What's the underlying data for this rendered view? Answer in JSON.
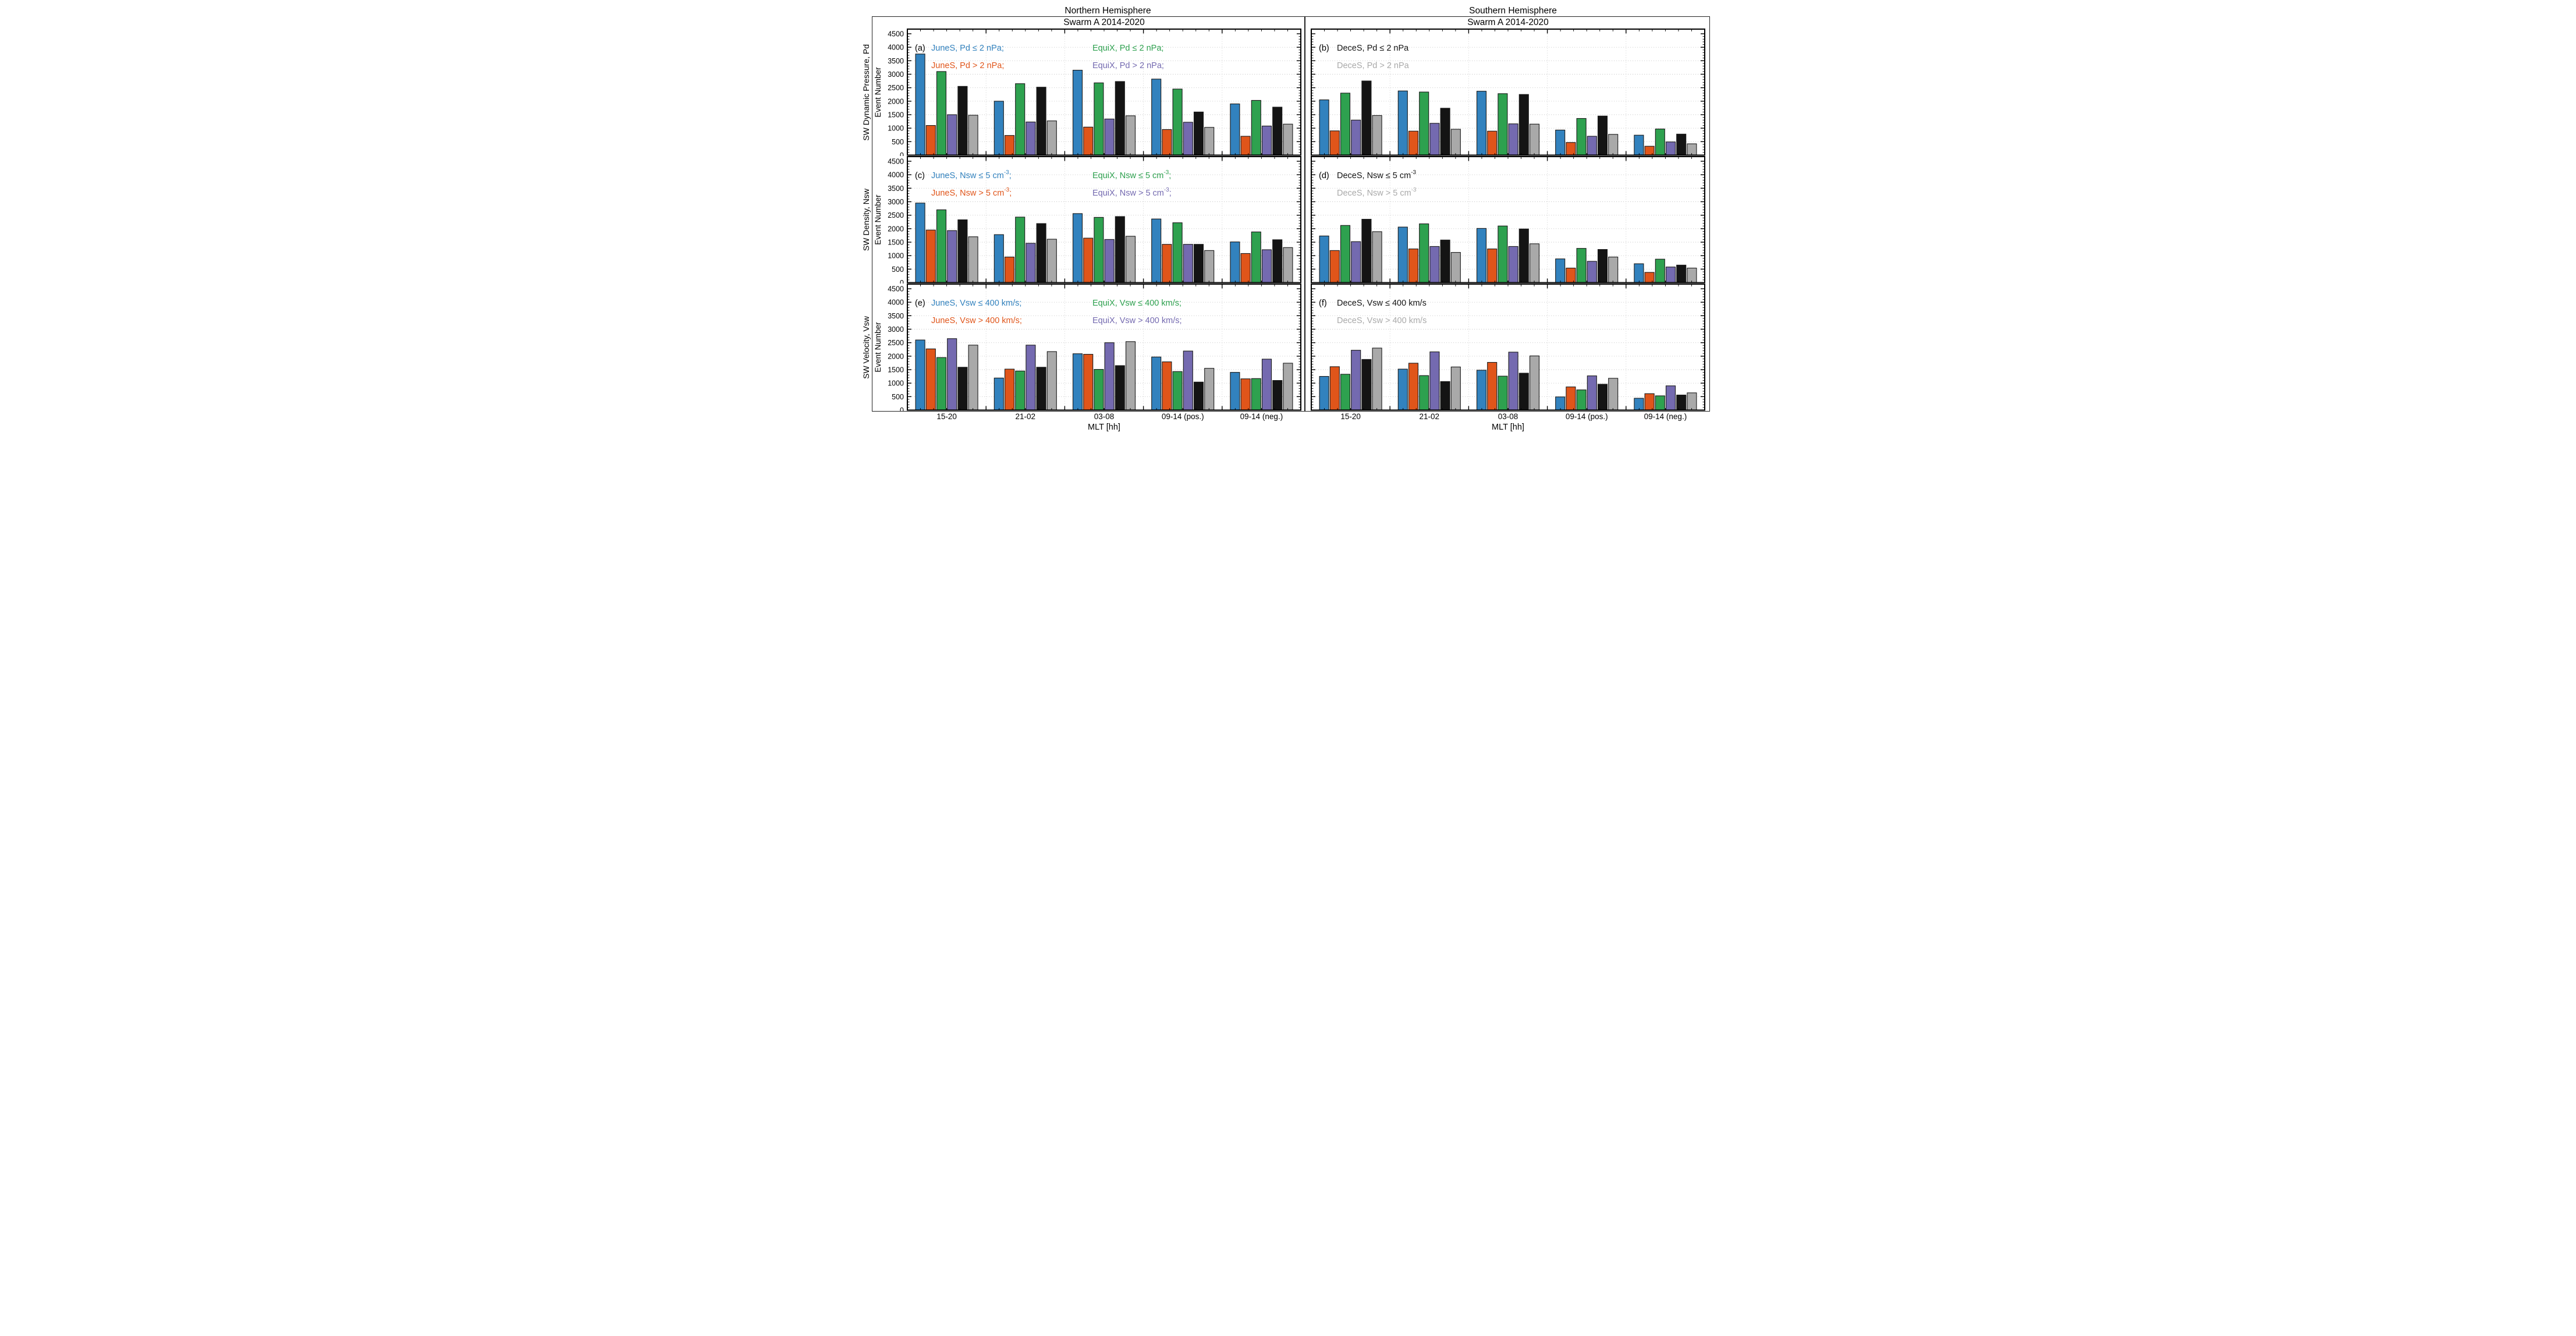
{
  "figure": {
    "columns": [
      {
        "title": "Northern Hemisphere",
        "subtitle": "Swarm A 2014-2020"
      },
      {
        "title": "Southern Hemisphere",
        "subtitle": "Swarm A 2014-2020"
      }
    ],
    "rows": [
      {
        "outer_label": "SW Dynamic Pressure, Pd",
        "inner_label": "Event Number"
      },
      {
        "outer_label": "SW Density, Nsw",
        "inner_label": "Event Number"
      },
      {
        "outer_label": "SW Velocity, Vsw",
        "inner_label": "Event Number"
      }
    ],
    "xlabel": "MLT [hh]"
  },
  "series_colors": {
    "blue": "#3282BE",
    "orange": "#E0551A",
    "green": "#2EA14F",
    "purple": "#746AB0",
    "black": "#141414",
    "gray": "#A9A9A9"
  },
  "chart_data": {
    "type": "bar",
    "categories": [
      "15-20",
      "21-02",
      "03-08",
      "09-14 (pos.)",
      "09-14 (neg.)"
    ],
    "ylim": [
      0,
      4500
    ],
    "ytick_step": 500,
    "yminor_step": 100,
    "ytick_labels": [
      "0",
      "500",
      "1000",
      "1500",
      "2000",
      "2500",
      "3000",
      "3500",
      "4000",
      "4500"
    ],
    "grid": "dotted horizontal every 500; dotted vertical at group boundaries",
    "legend_position": "inside top-left",
    "panels": [
      {
        "key": "a",
        "letter": "(a)",
        "column": 0,
        "row": 0,
        "legend": [
          {
            "pre": "JuneS, Pd ≤ 2 nPa;",
            "sup": "",
            "post": "",
            "color": "blue",
            "col": 0,
            "line": 0
          },
          {
            "pre": "JuneS, Pd > 2 nPa;",
            "sup": "",
            "post": "",
            "color": "orange",
            "col": 0,
            "line": 1
          },
          {
            "pre": "EquiX, Pd ≤ 2 nPa;",
            "sup": "",
            "post": "",
            "color": "green",
            "col": 1,
            "line": 0
          },
          {
            "pre": "EquiX, Pd > 2 nPa;",
            "sup": "",
            "post": "",
            "color": "purple",
            "col": 1,
            "line": 1
          }
        ],
        "series": [
          {
            "name": "JuneS, Pd <= 2 nPa",
            "color": "blue",
            "values": [
              3750,
              2000,
              3150,
              2820,
              1900
            ]
          },
          {
            "name": "JuneS, Pd > 2 nPa",
            "color": "orange",
            "values": [
              1100,
              730,
              1040,
              950,
              700
            ]
          },
          {
            "name": "EquiX, Pd <= 2 nPa",
            "color": "green",
            "values": [
              3100,
              2650,
              2680,
              2450,
              2030
            ]
          },
          {
            "name": "EquiX, Pd > 2 nPa",
            "color": "purple",
            "values": [
              1500,
              1230,
              1340,
              1220,
              1080
            ]
          },
          {
            "name": "DeceS, Pd <= 2 nPa",
            "color": "black",
            "values": [
              2550,
              2520,
              2730,
              1600,
              1780
            ]
          },
          {
            "name": "DeceS, Pd > 2 nPa",
            "color": "gray",
            "values": [
              1480,
              1270,
              1460,
              1030,
              1150
            ]
          }
        ]
      },
      {
        "key": "b",
        "letter": "(b)",
        "column": 1,
        "row": 0,
        "legend": [
          {
            "pre": "DeceS, Pd ≤ 2 nPa",
            "sup": "",
            "post": "",
            "color": "black",
            "col": 0,
            "line": 0
          },
          {
            "pre": "DeceS, Pd > 2 nPa",
            "sup": "",
            "post": "",
            "color": "gray",
            "col": 0,
            "line": 1
          }
        ],
        "series": [
          {
            "name": "JuneS, Pd <= 2 nPa",
            "color": "blue",
            "values": [
              2050,
              2380,
              2370,
              930,
              740
            ]
          },
          {
            "name": "JuneS, Pd > 2 nPa",
            "color": "orange",
            "values": [
              900,
              890,
              890,
              470,
              330
            ]
          },
          {
            "name": "EquiX, Pd <= 2 nPa",
            "color": "green",
            "values": [
              2300,
              2340,
              2280,
              1360,
              970
            ]
          },
          {
            "name": "EquiX, Pd > 2 nPa",
            "color": "purple",
            "values": [
              1300,
              1180,
              1160,
              700,
              490
            ]
          },
          {
            "name": "DeceS, Pd <= 2 nPa",
            "color": "black",
            "values": [
              2750,
              1740,
              2250,
              1450,
              780
            ]
          },
          {
            "name": "DeceS, Pd > 2 nPa",
            "color": "gray",
            "values": [
              1470,
              960,
              1150,
              770,
              420
            ]
          }
        ]
      },
      {
        "key": "c",
        "letter": "(c)",
        "column": 0,
        "row": 1,
        "legend": [
          {
            "pre": "JuneS, Nsw ≤ 5 cm",
            "sup": "-3",
            "post": ";",
            "color": "blue",
            "col": 0,
            "line": 0
          },
          {
            "pre": "JuneS, Nsw > 5 cm",
            "sup": "-3",
            "post": ";",
            "color": "orange",
            "col": 0,
            "line": 1
          },
          {
            "pre": "EquiX, Nsw ≤ 5 cm",
            "sup": "-3",
            "post": ";",
            "color": "green",
            "col": 1,
            "line": 0
          },
          {
            "pre": "EquiX, Nsw > 5 cm",
            "sup": "-3",
            "post": ";",
            "color": "purple",
            "col": 1,
            "line": 1
          }
        ],
        "series": [
          {
            "name": "JuneS, Nsw <= 5 cm-3",
            "color": "blue",
            "values": [
              2950,
              1780,
              2560,
              2360,
              1510
            ]
          },
          {
            "name": "JuneS, Nsw > 5 cm-3",
            "color": "orange",
            "values": [
              1950,
              950,
              1650,
              1420,
              1080
            ]
          },
          {
            "name": "EquiX, Nsw <= 5 cm-3",
            "color": "green",
            "values": [
              2700,
              2430,
              2420,
              2220,
              1880
            ]
          },
          {
            "name": "EquiX, Nsw > 5 cm-3",
            "color": "purple",
            "values": [
              1930,
              1460,
              1600,
              1420,
              1220
            ]
          },
          {
            "name": "DeceS, Nsw <= 5 cm-3",
            "color": "black",
            "values": [
              2330,
              2190,
              2450,
              1420,
              1590
            ]
          },
          {
            "name": "DeceS, Nsw > 5 cm-3",
            "color": "gray",
            "values": [
              1700,
              1610,
              1720,
              1190,
              1300
            ]
          }
        ]
      },
      {
        "key": "d",
        "letter": "(d)",
        "column": 1,
        "row": 1,
        "legend": [
          {
            "pre": "DeceS, Nsw ≤ 5 cm",
            "sup": "-3",
            "post": "",
            "color": "black",
            "col": 0,
            "line": 0
          },
          {
            "pre": "DeceS, Nsw > 5 cm",
            "sup": "-3",
            "post": "",
            "color": "gray",
            "col": 0,
            "line": 1
          }
        ],
        "series": [
          {
            "name": "JuneS, Nsw <= 5 cm-3",
            "color": "blue",
            "values": [
              1730,
              2060,
              2010,
              880,
              700
            ]
          },
          {
            "name": "JuneS, Nsw > 5 cm-3",
            "color": "orange",
            "values": [
              1190,
              1250,
              1250,
              540,
              380
            ]
          },
          {
            "name": "EquiX, Nsw <= 5 cm-3",
            "color": "green",
            "values": [
              2120,
              2180,
              2100,
              1270,
              870
            ]
          },
          {
            "name": "EquiX, Nsw > 5 cm-3",
            "color": "purple",
            "values": [
              1520,
              1340,
              1340,
              790,
              580
            ]
          },
          {
            "name": "DeceS, Nsw <= 5 cm-3",
            "color": "black",
            "values": [
              2350,
              1580,
              1990,
              1230,
              650
            ]
          },
          {
            "name": "DeceS, Nsw > 5 cm-3",
            "color": "gray",
            "values": [
              1890,
              1120,
              1440,
              950,
              540
            ]
          }
        ]
      },
      {
        "key": "e",
        "letter": "(e)",
        "column": 0,
        "row": 2,
        "legend": [
          {
            "pre": "JuneS, Vsw ≤ 400 km/s;",
            "sup": "",
            "post": "",
            "color": "blue",
            "col": 0,
            "line": 0
          },
          {
            "pre": "JuneS, Vsw > 400 km/s;",
            "sup": "",
            "post": "",
            "color": "orange",
            "col": 0,
            "line": 1
          },
          {
            "pre": "EquiX, Vsw ≤ 400 km/s;",
            "sup": "",
            "post": "",
            "color": "green",
            "col": 1,
            "line": 0
          },
          {
            "pre": "EquiX, Vsw > 400 km/s;",
            "sup": "",
            "post": "",
            "color": "purple",
            "col": 1,
            "line": 1
          }
        ],
        "series": [
          {
            "name": "JuneS, Vsw <= 400 km/s",
            "color": "blue",
            "values": [
              2600,
              1190,
              2090,
              1970,
              1400
            ]
          },
          {
            "name": "JuneS, Vsw > 400 km/s",
            "color": "orange",
            "values": [
              2270,
              1520,
              2070,
              1790,
              1160
            ]
          },
          {
            "name": "EquiX, Vsw <= 400 km/s",
            "color": "green",
            "values": [
              1950,
              1450,
              1510,
              1430,
              1170
            ]
          },
          {
            "name": "EquiX, Vsw > 400 km/s",
            "color": "purple",
            "values": [
              2650,
              2410,
              2500,
              2190,
              1890
            ]
          },
          {
            "name": "DeceS, Vsw <= 400 km/s",
            "color": "black",
            "values": [
              1590,
              1590,
              1650,
              1040,
              1100
            ]
          },
          {
            "name": "DeceS, Vsw > 400 km/s",
            "color": "gray",
            "values": [
              2410,
              2170,
              2540,
              1550,
              1740
            ]
          }
        ]
      },
      {
        "key": "f",
        "letter": "(f)",
        "column": 1,
        "row": 2,
        "legend": [
          {
            "pre": "DeceS, Vsw ≤ 400 km/s",
            "sup": "",
            "post": "",
            "color": "black",
            "col": 0,
            "line": 0
          },
          {
            "pre": "DeceS, Vsw > 400 km/s",
            "sup": "",
            "post": "",
            "color": "gray",
            "col": 0,
            "line": 1
          }
        ],
        "series": [
          {
            "name": "JuneS, Vsw <= 400 km/s",
            "color": "blue",
            "values": [
              1250,
              1520,
              1480,
              490,
              440
            ]
          },
          {
            "name": "JuneS, Vsw > 400 km/s",
            "color": "orange",
            "values": [
              1610,
              1740,
              1770,
              860,
              610
            ]
          },
          {
            "name": "EquiX, Vsw <= 400 km/s",
            "color": "green",
            "values": [
              1330,
              1280,
              1260,
              750,
              530
            ]
          },
          {
            "name": "EquiX, Vsw > 400 km/s",
            "color": "purple",
            "values": [
              2220,
              2160,
              2150,
              1270,
              900
            ]
          },
          {
            "name": "DeceS, Vsw <= 400 km/s",
            "color": "black",
            "values": [
              1880,
              1060,
              1370,
              960,
              560
            ]
          },
          {
            "name": "DeceS, Vsw > 400 km/s",
            "color": "gray",
            "values": [
              2300,
              1600,
              2010,
              1180,
              640
            ]
          }
        ]
      }
    ]
  }
}
